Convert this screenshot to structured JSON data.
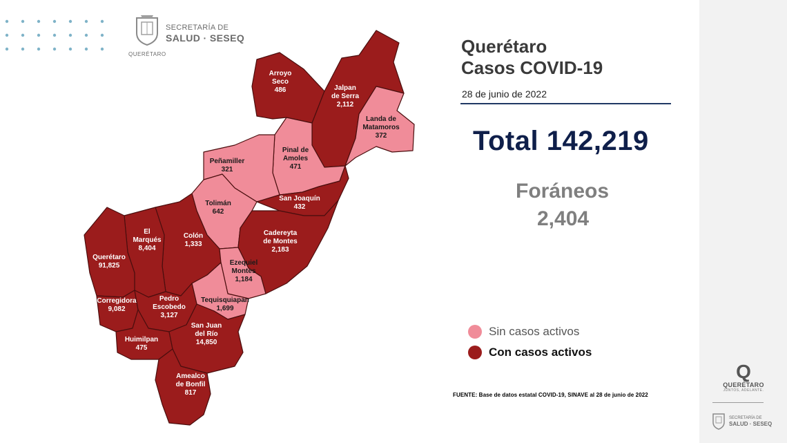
{
  "logo": {
    "secretaria": "SECRETARÍA DE",
    "salud": "SALUD · SESEQ",
    "state": "QUERÉTARO"
  },
  "header": {
    "title_line1": "Querétaro",
    "title_line2": "Casos COVID-19",
    "date": "28 de junio de 2022"
  },
  "total": "Total 142,219",
  "foraneos": {
    "label": "Foráneos",
    "value": "2,404"
  },
  "legend": [
    {
      "label": "Sin casos activos",
      "color": "#f08c99"
    },
    {
      "label": "Con casos activos",
      "color": "#9b1c1c"
    }
  ],
  "source": "FUENTE: Base de datos estatal  COVID-19,  SINAVE  al 28 de junio de 2022",
  "municipalities": [
    {
      "name_lines": [
        "Arroyo",
        "Seco"
      ],
      "cases": "486",
      "status": "active"
    },
    {
      "name_lines": [
        "Jalpan",
        "de Serra"
      ],
      "cases": "2,112",
      "status": "active"
    },
    {
      "name_lines": [
        "Landa de",
        "Matamoros"
      ],
      "cases": "372",
      "status": "inactive"
    },
    {
      "name_lines": [
        "Pinal de",
        "Amoles"
      ],
      "cases": "471",
      "status": "inactive"
    },
    {
      "name_lines": [
        "Peñamiller"
      ],
      "cases": "321",
      "status": "inactive"
    },
    {
      "name_lines": [
        "San Joaquín"
      ],
      "cases": "432",
      "status": "active"
    },
    {
      "name_lines": [
        "Tolimán"
      ],
      "cases": "642",
      "status": "inactive"
    },
    {
      "name_lines": [
        "Cadereyta",
        "de Montes"
      ],
      "cases": "2,183",
      "status": "active"
    },
    {
      "name_lines": [
        "Colón"
      ],
      "cases": "1,333",
      "status": "active"
    },
    {
      "name_lines": [
        "El",
        "Marqués"
      ],
      "cases": "8,404",
      "status": "active"
    },
    {
      "name_lines": [
        "Querétaro"
      ],
      "cases": "91,825",
      "status": "active"
    },
    {
      "name_lines": [
        "Ezequiel",
        "Montes"
      ],
      "cases": "1,184",
      "status": "inactive"
    },
    {
      "name_lines": [
        "Tequisquiapan"
      ],
      "cases": "1,699",
      "status": "inactive"
    },
    {
      "name_lines": [
        "Corregidora"
      ],
      "cases": "9,082",
      "status": "active"
    },
    {
      "name_lines": [
        "Pedro",
        "Escobedo"
      ],
      "cases": "3,127",
      "status": "active"
    },
    {
      "name_lines": [
        "Huimilpan"
      ],
      "cases": "475",
      "status": "active"
    },
    {
      "name_lines": [
        "San Juan",
        "del Río"
      ],
      "cases": "14,850",
      "status": "active"
    },
    {
      "name_lines": [
        "Amealco",
        "de Bonfil"
      ],
      "cases": "817",
      "status": "active"
    }
  ],
  "side_logo": {
    "brand": "QUERÉTARO",
    "tagline": "JUNTOS, ADELANTE.",
    "secretaria": "SECRETARÍA DE",
    "salud": "SALUD · SESEQ"
  }
}
